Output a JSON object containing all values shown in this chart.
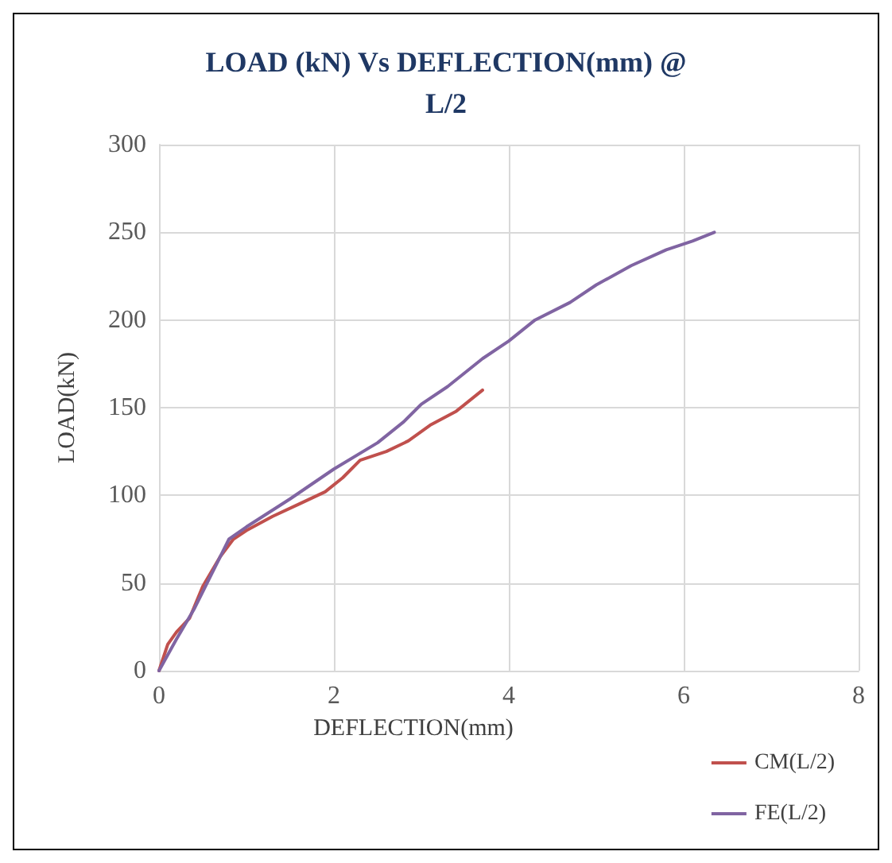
{
  "chart_data": {
    "type": "line",
    "title": "LOAD (kN) Vs DEFLECTION(mm) @ L/2",
    "xlabel": "DEFLECTION(mm)",
    "ylabel": "LOAD(kN)",
    "xlim": [
      0,
      8
    ],
    "xticks": [
      0,
      2,
      4,
      6,
      8
    ],
    "ylim": [
      0,
      300
    ],
    "yticks": [
      0,
      50,
      100,
      150,
      200,
      250,
      300
    ],
    "grid": true,
    "legend": "bottom right",
    "marker": "none",
    "line_style": "solid",
    "series": [
      {
        "name": "CM(L/2)",
        "color": "#c0504d",
        "x": [
          0,
          0.1,
          0.2,
          0.35,
          0.5,
          0.7,
          0.85,
          1.0,
          1.3,
          1.6,
          1.9,
          2.1,
          2.3,
          2.6,
          2.85,
          3.1,
          3.4,
          3.7
        ],
        "values": [
          0,
          15,
          22,
          30,
          48,
          65,
          75,
          80,
          88,
          95,
          102,
          110,
          120,
          125,
          131,
          140,
          148,
          160
        ]
      },
      {
        "name": "FE(L/2)",
        "color": "#8064a2",
        "x": [
          0,
          0.2,
          0.4,
          0.6,
          0.8,
          1.0,
          1.5,
          2.0,
          2.5,
          2.8,
          3.0,
          3.3,
          3.7,
          4.0,
          4.3,
          4.7,
          5.0,
          5.4,
          5.8,
          6.1,
          6.35
        ],
        "values": [
          0,
          18,
          35,
          55,
          75,
          82,
          98,
          115,
          130,
          142,
          152,
          162,
          178,
          188,
          200,
          210,
          220,
          231,
          240,
          245,
          250
        ]
      }
    ]
  }
}
